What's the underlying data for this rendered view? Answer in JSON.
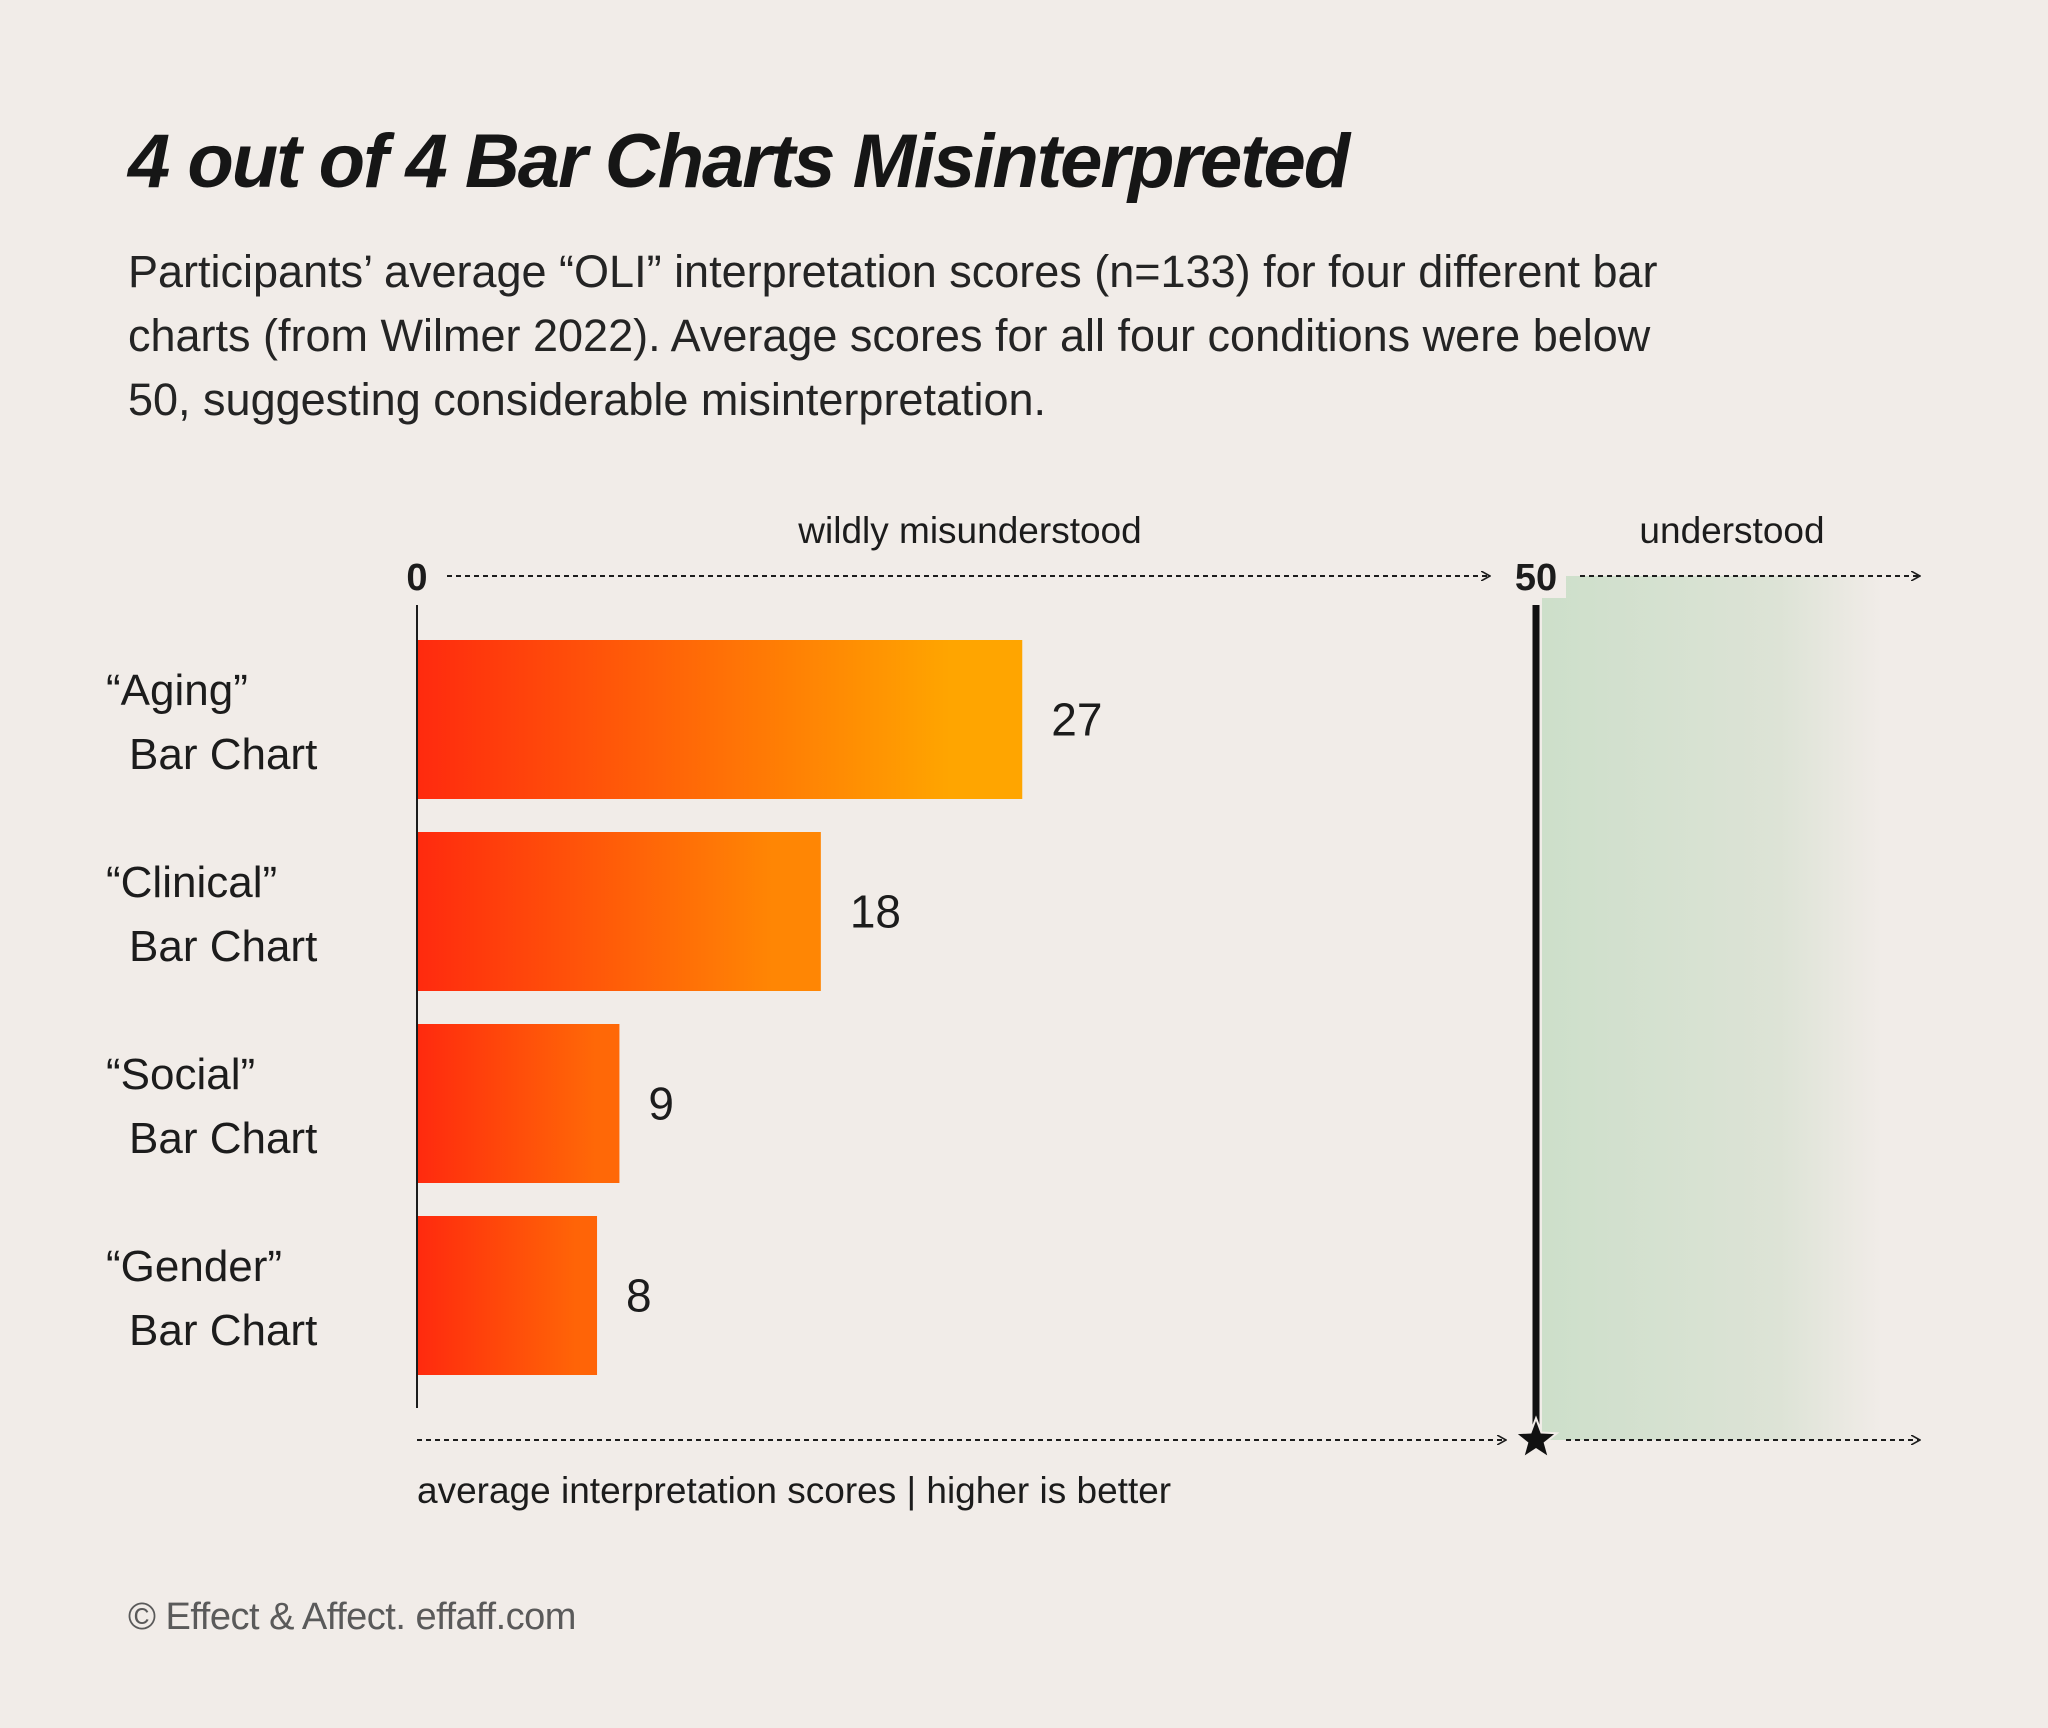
{
  "title": "4 out of 4 Bar Charts Misinterpreted",
  "subtitle": "Participants’ average “OLI” interpretation scores (n=133) for four different bar charts (from Wilmer 2022). Average scores for all four conditions were below 50, suggesting considerable misinterpretation.",
  "footer": "© Effect & Affect. effaff.com",
  "chart_data": {
    "type": "bar",
    "orientation": "horizontal",
    "categories": [
      [
        "“Aging”",
        "Bar Chart"
      ],
      [
        "“Clinical”",
        "Bar Chart"
      ],
      [
        "“Social”",
        "Bar Chart"
      ],
      [
        "“Gender”",
        "Bar Chart"
      ]
    ],
    "values": [
      27,
      18,
      9,
      8
    ],
    "value_labels": [
      "27",
      "18",
      "9",
      "8"
    ],
    "xlim": [
      0,
      50
    ],
    "threshold": 50,
    "tick_labels": [
      "0",
      "50"
    ],
    "region_labels": {
      "below": "wildly misunderstood",
      "above": "understood"
    },
    "xlabel": "average interpretation scores | higher is better",
    "colors": {
      "bar_start": "#ff2a0e",
      "bar_end": "#ffa500",
      "understood_region": "#cddfca",
      "threshold_line": "#111111"
    }
  }
}
